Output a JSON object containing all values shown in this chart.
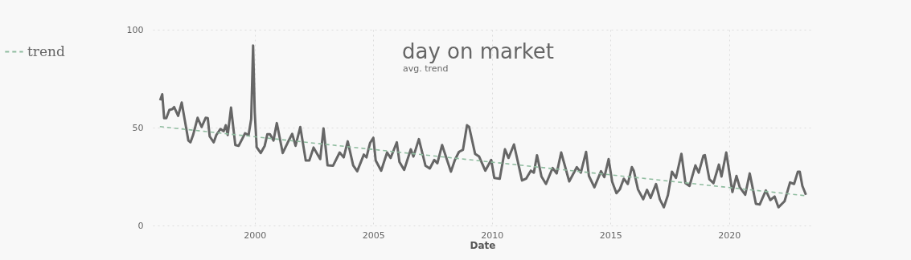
{
  "chart_data": {
    "type": "line",
    "title": "day on market",
    "subtitle": "avg. trend",
    "xlabel": "Date",
    "legend": "left",
    "grid": true,
    "marker": "none",
    "xlim": [
      1995.7,
      2023.5
    ],
    "xticks": [
      2000,
      2005,
      2010,
      2015,
      2020
    ],
    "ylim": [
      0,
      100
    ],
    "yticks": [
      0,
      50,
      100
    ],
    "series": [
      {
        "color": "#666666",
        "line_style": "solid",
        "x": [
          1996.01,
          1996.1,
          1996.18,
          1996.27,
          1996.4,
          1996.52,
          1996.6,
          1996.77,
          1996.92,
          1997.2,
          1997.29,
          1997.4,
          1997.59,
          1997.76,
          1997.93,
          1998.02,
          1998.1,
          1998.27,
          1998.38,
          1998.55,
          1998.69,
          1998.78,
          1998.86,
          1999.0,
          1999.18,
          1999.32,
          1999.48,
          1999.59,
          1999.74,
          1999.85,
          1999.93,
          2000.0,
          2000.08,
          2000.25,
          2000.42,
          2000.53,
          2000.64,
          2000.79,
          2000.93,
          2001.18,
          2001.38,
          2001.58,
          2001.72,
          2001.92,
          2002.15,
          2002.3,
          2002.48,
          2002.76,
          2002.9,
          2003.07,
          2003.3,
          2003.58,
          2003.75,
          2003.92,
          2004.15,
          2004.32,
          2004.6,
          2004.71,
          2004.86,
          2005.0,
          2005.1,
          2005.33,
          2005.58,
          2005.73,
          2005.99,
          2006.1,
          2006.3,
          2006.58,
          2006.69,
          2006.92,
          2007.2,
          2007.38,
          2007.57,
          2007.7,
          2007.9,
          2008.27,
          2008.44,
          2008.61,
          2008.78,
          2008.95,
          2009.04,
          2009.29,
          2009.46,
          2009.72,
          2009.97,
          2010.1,
          2010.33,
          2010.55,
          2010.7,
          2010.93,
          2011.27,
          2011.44,
          2011.64,
          2011.77,
          2011.9,
          2012.09,
          2012.28,
          2012.56,
          2012.73,
          2012.92,
          2013.26,
          2013.58,
          2013.75,
          2013.97,
          2014.09,
          2014.32,
          2014.6,
          2014.74,
          2014.92,
          2015.07,
          2015.25,
          2015.39,
          2015.56,
          2015.73,
          2015.9,
          2015.98,
          2016.16,
          2016.38,
          2016.54,
          2016.69,
          2016.92,
          2017.08,
          2017.25,
          2017.42,
          2017.59,
          2017.76,
          2017.99,
          2018.16,
          2018.33,
          2018.58,
          2018.72,
          2018.92,
          2018.98,
          2019.17,
          2019.34,
          2019.57,
          2019.68,
          2019.88,
          2020.14,
          2020.31,
          2020.45,
          2020.68,
          2020.87,
          2021.13,
          2021.29,
          2021.55,
          2021.74,
          2021.92,
          2022.08,
          2022.34,
          2022.57,
          2022.74,
          2022.9,
          2022.98,
          2023.09,
          2023.24
        ],
        "values": [
          63.9,
          67,
          54.8,
          54.8,
          59,
          59.4,
          60.5,
          56,
          62.8,
          43.4,
          42.5,
          46.2,
          55,
          50.3,
          55,
          54.8,
          45.5,
          42.5,
          46.2,
          49.3,
          48.2,
          51.2,
          46.2,
          60.2,
          41.1,
          40.7,
          44.4,
          47.1,
          46.2,
          54.4,
          91.9,
          57.8,
          40,
          37,
          40.7,
          46.6,
          46.6,
          43.4,
          52.3,
          37,
          42.1,
          46.8,
          40.7,
          50.3,
          33.2,
          33.2,
          39.8,
          33.9,
          49.6,
          30.7,
          30.5,
          37.3,
          34.8,
          43,
          30.7,
          27.7,
          36.2,
          34.8,
          42.1,
          44.8,
          33.2,
          28,
          37.3,
          34.5,
          42.5,
          32.5,
          28.4,
          38.9,
          35.2,
          44.1,
          30.5,
          29.1,
          33.5,
          31.8,
          41.1,
          27.5,
          33.5,
          37.6,
          38.7,
          51.2,
          50.3,
          36.6,
          35.2,
          28,
          33.5,
          24.3,
          23.9,
          38.9,
          34.5,
          41.4,
          23,
          23.9,
          28,
          27,
          35.9,
          25,
          21.2,
          29.4,
          26.6,
          37.3,
          22.5,
          29.8,
          27,
          37.6,
          25.3,
          19.5,
          27.7,
          24.7,
          33.9,
          22.3,
          16.5,
          18.4,
          23.9,
          21.2,
          29.8,
          28,
          18.4,
          13.4,
          18.2,
          14.1,
          21.2,
          13.4,
          9.3,
          15.5,
          27.5,
          24.3,
          36.6,
          21.6,
          20.2,
          30.7,
          27,
          35.7,
          35.9,
          23.6,
          21.6,
          31.1,
          25,
          37.3,
          17.1,
          25.3,
          19.5,
          15.7,
          26.6,
          11.1,
          10.7,
          17.9,
          13,
          14.8,
          9.3,
          12.4,
          22,
          21.2,
          27.5,
          27.5,
          20.2,
          15.7
        ]
      },
      {
        "name": "trend",
        "color": "#8fbc9f",
        "line_style": "dashed",
        "x": [
          1996.0,
          2023.24
        ],
        "values": [
          50.5,
          15.2
        ]
      }
    ]
  }
}
